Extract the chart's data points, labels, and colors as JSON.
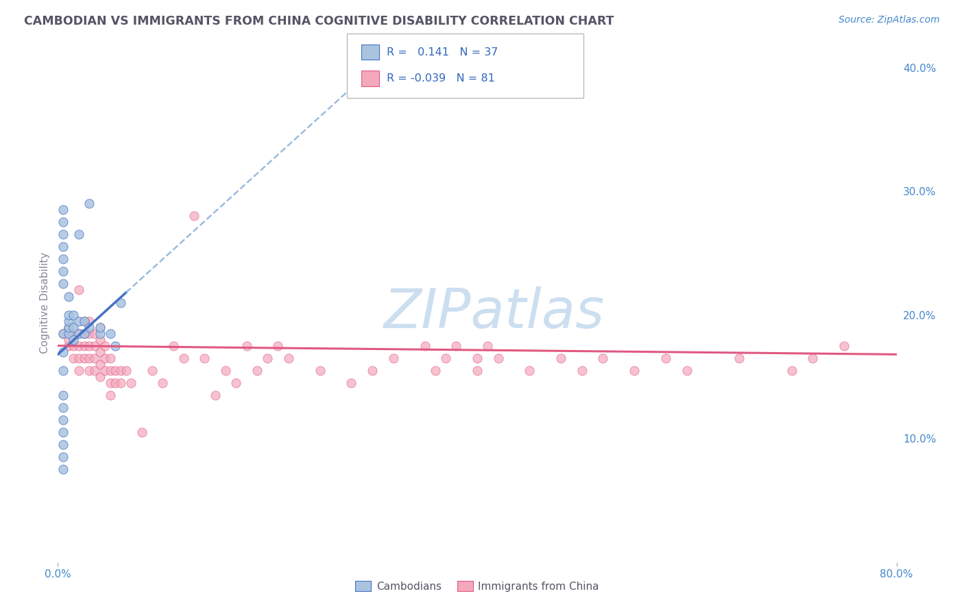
{
  "title": "CAMBODIAN VS IMMIGRANTS FROM CHINA COGNITIVE DISABILITY CORRELATION CHART",
  "source": "Source: ZipAtlas.com",
  "ylabel": "Cognitive Disability",
  "xlim": [
    0.0,
    0.8
  ],
  "ylim": [
    0.0,
    0.42
  ],
  "yticks_right": [
    0.1,
    0.2,
    0.3,
    0.4
  ],
  "ytick_labels_right": [
    "10.0%",
    "20.0%",
    "30.0%",
    "40.0%"
  ],
  "r_cambodian": 0.141,
  "n_cambodian": 37,
  "r_china": -0.039,
  "n_china": 81,
  "color_cambodian": "#aac4e0",
  "color_china": "#f4a8bc",
  "line_color_cambodian": "#4472c4",
  "line_color_china": "#e05880",
  "watermark": "ZIPatlas",
  "watermark_color": "#ccdff0",
  "background_color": "#ffffff",
  "grid_color": "#cccccc",
  "title_color": "#555566",
  "axis_label_color": "#4488cc",
  "legend_text_color": "#3366bb",
  "cambodian_x": [
    0.005,
    0.005,
    0.005,
    0.005,
    0.005,
    0.005,
    0.005,
    0.005,
    0.005,
    0.005,
    0.01,
    0.01,
    0.01,
    0.01,
    0.01,
    0.015,
    0.015,
    0.015,
    0.02,
    0.02,
    0.02,
    0.025,
    0.025,
    0.03,
    0.03,
    0.04,
    0.04,
    0.05,
    0.055,
    0.06,
    0.005,
    0.005,
    0.005,
    0.005,
    0.005,
    0.005,
    0.005
  ],
  "cambodian_y": [
    0.075,
    0.085,
    0.095,
    0.105,
    0.115,
    0.125,
    0.135,
    0.155,
    0.17,
    0.185,
    0.185,
    0.19,
    0.195,
    0.2,
    0.215,
    0.18,
    0.19,
    0.2,
    0.185,
    0.195,
    0.265,
    0.185,
    0.195,
    0.19,
    0.29,
    0.185,
    0.19,
    0.185,
    0.175,
    0.21,
    0.225,
    0.235,
    0.245,
    0.255,
    0.265,
    0.275,
    0.285
  ],
  "china_x": [
    0.005,
    0.01,
    0.01,
    0.01,
    0.015,
    0.015,
    0.015,
    0.02,
    0.02,
    0.02,
    0.02,
    0.02,
    0.025,
    0.025,
    0.025,
    0.025,
    0.03,
    0.03,
    0.03,
    0.03,
    0.03,
    0.035,
    0.035,
    0.035,
    0.035,
    0.04,
    0.04,
    0.04,
    0.04,
    0.04,
    0.045,
    0.045,
    0.045,
    0.05,
    0.05,
    0.05,
    0.05,
    0.055,
    0.055,
    0.06,
    0.06,
    0.065,
    0.07,
    0.08,
    0.09,
    0.1,
    0.11,
    0.12,
    0.13,
    0.14,
    0.15,
    0.16,
    0.17,
    0.18,
    0.19,
    0.2,
    0.21,
    0.22,
    0.25,
    0.28,
    0.3,
    0.32,
    0.35,
    0.36,
    0.37,
    0.38,
    0.4,
    0.4,
    0.41,
    0.42,
    0.45,
    0.48,
    0.5,
    0.52,
    0.55,
    0.58,
    0.6,
    0.65,
    0.7,
    0.72,
    0.75
  ],
  "china_y": [
    0.185,
    0.175,
    0.18,
    0.19,
    0.165,
    0.175,
    0.185,
    0.155,
    0.165,
    0.175,
    0.185,
    0.22,
    0.165,
    0.175,
    0.185,
    0.195,
    0.155,
    0.165,
    0.175,
    0.185,
    0.195,
    0.155,
    0.165,
    0.175,
    0.185,
    0.15,
    0.16,
    0.17,
    0.18,
    0.19,
    0.155,
    0.165,
    0.175,
    0.135,
    0.145,
    0.155,
    0.165,
    0.145,
    0.155,
    0.145,
    0.155,
    0.155,
    0.145,
    0.105,
    0.155,
    0.145,
    0.175,
    0.165,
    0.28,
    0.165,
    0.135,
    0.155,
    0.145,
    0.175,
    0.155,
    0.165,
    0.175,
    0.165,
    0.155,
    0.145,
    0.155,
    0.165,
    0.175,
    0.155,
    0.165,
    0.175,
    0.165,
    0.155,
    0.175,
    0.165,
    0.155,
    0.165,
    0.155,
    0.165,
    0.155,
    0.165,
    0.155,
    0.165,
    0.155,
    0.165,
    0.175
  ],
  "trend_cambodian_x0": 0.0,
  "trend_cambodian_y0": 0.168,
  "trend_cambodian_x1": 0.065,
  "trend_cambodian_y1": 0.218,
  "trend_china_x0": 0.0,
  "trend_china_y0": 0.175,
  "trend_china_x1": 0.8,
  "trend_china_y1": 0.168
}
